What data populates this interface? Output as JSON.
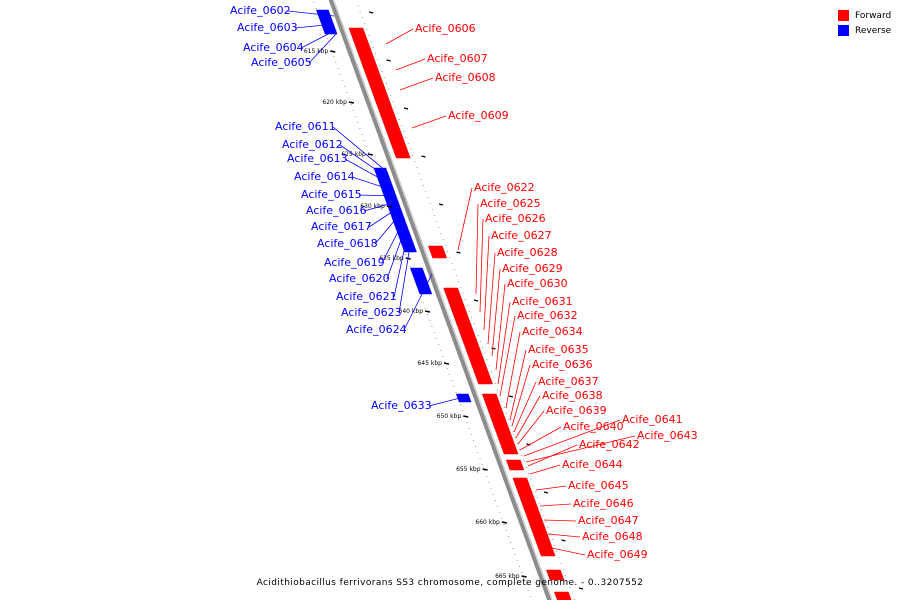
{
  "title": "Acidithiobacillus ferrivorans SS3 chromosome, complete genome. - 0..3207552",
  "legend": [
    {
      "label": "Forward",
      "color": "#ff0000"
    },
    {
      "label": "Reverse",
      "color": "#0000ff"
    }
  ],
  "colors": {
    "forward": "#ff0000",
    "reverse": "#0000ff",
    "backbone": "#808080"
  },
  "tick_labels": [
    "615 kbp",
    "620 kbp",
    "625 kbp",
    "630 kbp",
    "635 kbp",
    "640 kbp",
    "645 kbp",
    "650 kbp",
    "655 kbp",
    "660 kbp",
    "665 kbp"
  ],
  "genes_reverse": [
    "Acife_0602",
    "Acife_0603",
    "Acife_0604",
    "Acife_0605",
    "Acife_0611",
    "Acife_0612",
    "Acife_0613",
    "Acife_0614",
    "Acife_0615",
    "Acife_0616",
    "Acife_0617",
    "Acife_0618",
    "Acife_0619",
    "Acife_0620",
    "Acife_0621",
    "Acife_0623",
    "Acife_0624",
    "Acife_0633"
  ],
  "genes_forward": [
    "Acife_0606",
    "Acife_0607",
    "Acife_0608",
    "Acife_0609",
    "Acife_0622",
    "Acife_0625",
    "Acife_0626",
    "Acife_0627",
    "Acife_0628",
    "Acife_0629",
    "Acife_0630",
    "Acife_0631",
    "Acife_0632",
    "Acife_0634",
    "Acife_0635",
    "Acife_0636",
    "Acife_0637",
    "Acife_0638",
    "Acife_0639",
    "Acife_0640",
    "Acife_0641",
    "Acife_0643",
    "Acife_0642",
    "Acife_0644",
    "Acife_0645",
    "Acife_0646",
    "Acife_0647",
    "Acife_0648",
    "Acife_0649"
  ]
}
